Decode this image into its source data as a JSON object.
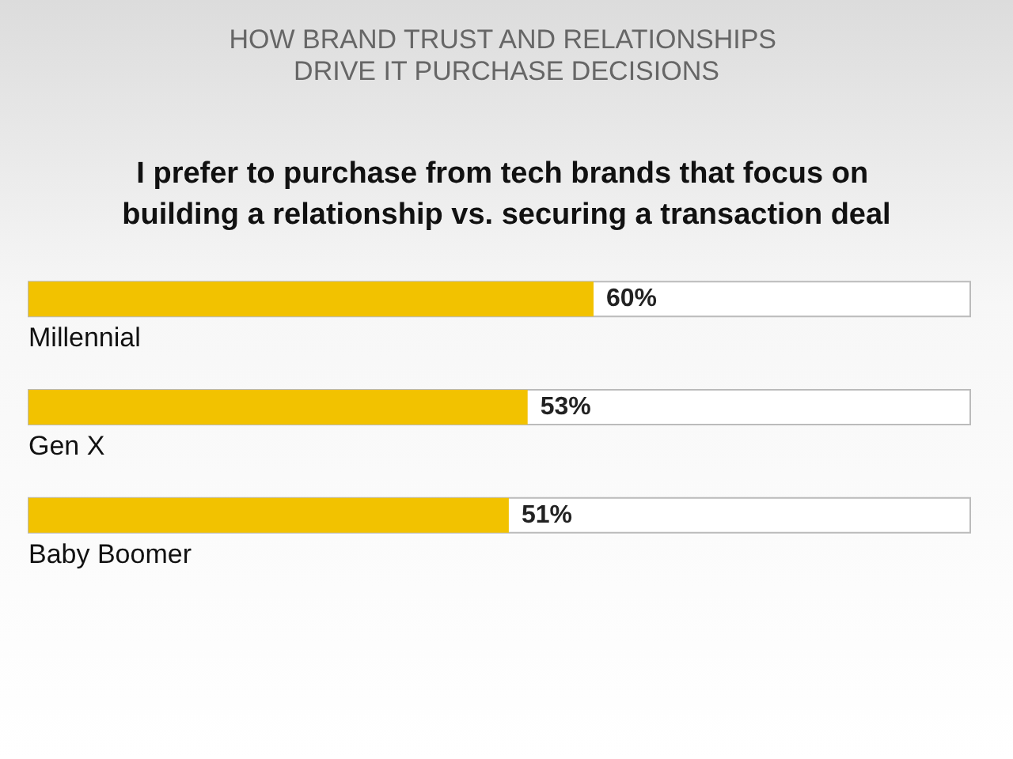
{
  "chart_data": {
    "type": "bar",
    "orientation": "horizontal",
    "title": "HOW BRAND TRUST AND RELATIONSHIPS DRIVE IT PURCHASE DECISIONS",
    "subtitle": "I prefer to purchase from tech brands that focus on building a relationship vs. securing a transaction deal",
    "categories": [
      "Millennial",
      "Gen X",
      "Baby Boomer"
    ],
    "values": [
      60,
      53,
      51
    ],
    "value_labels": [
      "60%",
      "53%",
      "51%"
    ],
    "color": "#f2c200",
    "xlim": [
      0,
      100
    ],
    "grid": false
  }
}
